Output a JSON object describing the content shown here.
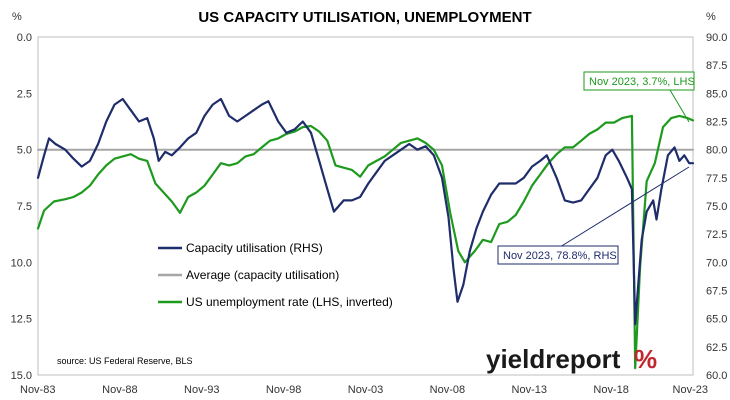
{
  "chart_data": {
    "type": "line",
    "title": "US CAPACITY UTILISATION, UNEMPLOYMENT",
    "left_axis": {
      "unit": "%",
      "min": 0,
      "max": 15,
      "inverted": true,
      "ticks": [
        "0.0",
        "2.5",
        "5.0",
        "7.5",
        "10.0",
        "12.5",
        "15.0"
      ]
    },
    "right_axis": {
      "unit": "%",
      "min": 60,
      "max": 90,
      "ticks": [
        "60.0",
        "62.5",
        "65.0",
        "67.5",
        "70.0",
        "72.5",
        "75.0",
        "77.5",
        "80.0",
        "82.5",
        "85.0",
        "87.5",
        "90.0"
      ]
    },
    "x_axis": {
      "min": 1983.83,
      "max": 2023.83,
      "ticks": [
        "Nov-83",
        "Nov-88",
        "Nov-93",
        "Nov-98",
        "Nov-03",
        "Nov-08",
        "Nov-13",
        "Nov-18",
        "Nov-23"
      ]
    },
    "grid": false,
    "legend_position": "bottom-left",
    "colors": {
      "capacity": "#1f2d6b",
      "average": "#a6a6a6",
      "unemployment": "#1e9a1e",
      "logo_red": "#c0282d",
      "logo_green": "#2e8b2e"
    },
    "series": [
      {
        "name": "Capacity utilisation (RHS)",
        "axis": "right",
        "color": "#1f2d6b",
        "points": [
          [
            1983.83,
            77.5
          ],
          [
            1984.2,
            79.5
          ],
          [
            1984.5,
            81.0
          ],
          [
            1984.9,
            80.5
          ],
          [
            1985.5,
            80.0
          ],
          [
            1986.0,
            79.2
          ],
          [
            1986.5,
            78.5
          ],
          [
            1987.0,
            79.0
          ],
          [
            1987.5,
            80.5
          ],
          [
            1988.0,
            82.5
          ],
          [
            1988.5,
            84.0
          ],
          [
            1989.0,
            84.5
          ],
          [
            1989.5,
            83.5
          ],
          [
            1990.0,
            82.5
          ],
          [
            1990.5,
            82.8
          ],
          [
            1990.9,
            81.0
          ],
          [
            1991.2,
            79.0
          ],
          [
            1991.6,
            79.8
          ],
          [
            1992.0,
            79.5
          ],
          [
            1992.5,
            80.2
          ],
          [
            1993.0,
            81.0
          ],
          [
            1993.5,
            81.5
          ],
          [
            1994.0,
            83.0
          ],
          [
            1994.5,
            84.0
          ],
          [
            1995.0,
            84.5
          ],
          [
            1995.5,
            83.0
          ],
          [
            1996.0,
            82.5
          ],
          [
            1996.5,
            83.0
          ],
          [
            1997.0,
            83.5
          ],
          [
            1997.5,
            84.0
          ],
          [
            1997.9,
            84.3
          ],
          [
            1998.5,
            82.5
          ],
          [
            1999.0,
            81.5
          ],
          [
            1999.5,
            81.8
          ],
          [
            2000.0,
            82.5
          ],
          [
            2000.5,
            81.5
          ],
          [
            2001.0,
            79.0
          ],
          [
            2001.5,
            76.5
          ],
          [
            2001.9,
            74.5
          ],
          [
            2002.5,
            75.5
          ],
          [
            2003.0,
            75.5
          ],
          [
            2003.5,
            75.8
          ],
          [
            2004.0,
            77.0
          ],
          [
            2004.5,
            78.0
          ],
          [
            2005.0,
            79.0
          ],
          [
            2005.5,
            79.5
          ],
          [
            2006.0,
            80.0
          ],
          [
            2006.5,
            80.5
          ],
          [
            2007.0,
            80.0
          ],
          [
            2007.5,
            80.3
          ],
          [
            2008.0,
            79.5
          ],
          [
            2008.5,
            77.5
          ],
          [
            2008.9,
            74.0
          ],
          [
            2009.2,
            69.5
          ],
          [
            2009.45,
            66.5
          ],
          [
            2009.8,
            68.0
          ],
          [
            2010.2,
            71.0
          ],
          [
            2010.6,
            73.0
          ],
          [
            2011.0,
            74.5
          ],
          [
            2011.5,
            76.0
          ],
          [
            2012.0,
            77.0
          ],
          [
            2012.5,
            77.0
          ],
          [
            2013.0,
            77.0
          ],
          [
            2013.5,
            77.5
          ],
          [
            2014.0,
            78.5
          ],
          [
            2014.5,
            79.0
          ],
          [
            2014.9,
            79.5
          ],
          [
            2015.5,
            77.5
          ],
          [
            2016.0,
            75.5
          ],
          [
            2016.5,
            75.3
          ],
          [
            2017.0,
            75.5
          ],
          [
            2017.5,
            76.5
          ],
          [
            2018.0,
            77.5
          ],
          [
            2018.5,
            79.5
          ],
          [
            2018.9,
            80.0
          ],
          [
            2019.3,
            79.0
          ],
          [
            2019.8,
            77.5
          ],
          [
            2020.1,
            76.5
          ],
          [
            2020.3,
            64.5
          ],
          [
            2020.7,
            72.0
          ],
          [
            2021.0,
            74.5
          ],
          [
            2021.4,
            75.5
          ],
          [
            2021.6,
            73.8
          ],
          [
            2021.9,
            76.5
          ],
          [
            2022.3,
            79.5
          ],
          [
            2022.7,
            80.2
          ],
          [
            2023.0,
            79.0
          ],
          [
            2023.3,
            79.5
          ],
          [
            2023.6,
            78.8
          ],
          [
            2023.83,
            78.8
          ]
        ]
      },
      {
        "name": "Average (capacity utilisation)",
        "axis": "right",
        "color": "#a6a6a6",
        "points": [
          [
            1983.83,
            80.0
          ],
          [
            2023.83,
            80.0
          ]
        ]
      },
      {
        "name": "US unemployment rate (LHS, inverted)",
        "axis": "left",
        "color": "#1e9a1e",
        "points": [
          [
            1983.83,
            8.5
          ],
          [
            1984.2,
            7.7
          ],
          [
            1984.8,
            7.3
          ],
          [
            1985.5,
            7.2
          ],
          [
            1986.0,
            7.1
          ],
          [
            1986.5,
            6.9
          ],
          [
            1987.0,
            6.6
          ],
          [
            1987.5,
            6.1
          ],
          [
            1988.0,
            5.7
          ],
          [
            1988.5,
            5.4
          ],
          [
            1989.0,
            5.3
          ],
          [
            1989.5,
            5.2
          ],
          [
            1990.0,
            5.4
          ],
          [
            1990.5,
            5.5
          ],
          [
            1991.0,
            6.5
          ],
          [
            1991.5,
            6.9
          ],
          [
            1992.0,
            7.3
          ],
          [
            1992.5,
            7.8
          ],
          [
            1993.0,
            7.1
          ],
          [
            1993.5,
            6.9
          ],
          [
            1994.0,
            6.6
          ],
          [
            1994.5,
            6.1
          ],
          [
            1995.0,
            5.6
          ],
          [
            1995.5,
            5.7
          ],
          [
            1996.0,
            5.6
          ],
          [
            1996.5,
            5.3
          ],
          [
            1997.0,
            5.2
          ],
          [
            1997.5,
            4.9
          ],
          [
            1998.0,
            4.6
          ],
          [
            1998.5,
            4.5
          ],
          [
            1999.0,
            4.3
          ],
          [
            1999.5,
            4.2
          ],
          [
            2000.0,
            4.0
          ],
          [
            2000.5,
            3.95
          ],
          [
            2001.0,
            4.2
          ],
          [
            2001.5,
            4.6
          ],
          [
            2002.0,
            5.7
          ],
          [
            2002.5,
            5.8
          ],
          [
            2003.0,
            5.9
          ],
          [
            2003.5,
            6.2
          ],
          [
            2004.0,
            5.7
          ],
          [
            2004.5,
            5.5
          ],
          [
            2005.0,
            5.3
          ],
          [
            2005.5,
            5.0
          ],
          [
            2006.0,
            4.7
          ],
          [
            2006.5,
            4.6
          ],
          [
            2007.0,
            4.5
          ],
          [
            2007.5,
            4.7
          ],
          [
            2008.0,
            5.0
          ],
          [
            2008.5,
            5.7
          ],
          [
            2009.0,
            7.8
          ],
          [
            2009.5,
            9.5
          ],
          [
            2009.9,
            10.0
          ],
          [
            2010.5,
            9.5
          ],
          [
            2011.0,
            9.0
          ],
          [
            2011.5,
            9.1
          ],
          [
            2012.0,
            8.3
          ],
          [
            2012.5,
            8.2
          ],
          [
            2013.0,
            7.9
          ],
          [
            2013.5,
            7.3
          ],
          [
            2014.0,
            6.6
          ],
          [
            2014.5,
            6.1
          ],
          [
            2015.0,
            5.6
          ],
          [
            2015.5,
            5.2
          ],
          [
            2016.0,
            4.9
          ],
          [
            2016.5,
            4.9
          ],
          [
            2017.0,
            4.6
          ],
          [
            2017.5,
            4.3
          ],
          [
            2018.0,
            4.1
          ],
          [
            2018.5,
            3.8
          ],
          [
            2019.0,
            3.8
          ],
          [
            2019.5,
            3.6
          ],
          [
            2020.1,
            3.5
          ],
          [
            2020.3,
            14.7
          ],
          [
            2020.6,
            10.2
          ],
          [
            2021.0,
            6.4
          ],
          [
            2021.5,
            5.6
          ],
          [
            2022.0,
            4.0
          ],
          [
            2022.5,
            3.6
          ],
          [
            2023.0,
            3.5
          ],
          [
            2023.5,
            3.6
          ],
          [
            2023.83,
            3.7
          ]
        ]
      }
    ],
    "annotations": [
      {
        "text": "Nov 2023, 3.7%, LHS",
        "color": "#1e9a1e"
      },
      {
        "text": "Nov 2023, 78.8%, RHS",
        "color": "#1f2d6b"
      }
    ],
    "source": "source: US Federal Reserve, BLS"
  },
  "branding": {
    "logo_text": "yieldreport",
    "logo_symbol": "%"
  }
}
